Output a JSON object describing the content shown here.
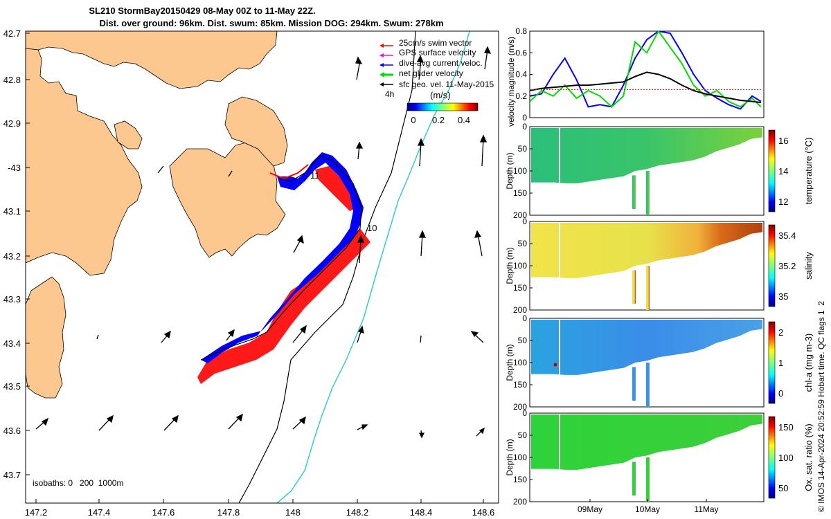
{
  "title": {
    "line1": "SL210 StormBay20150429 08-May 00Z to 11-May 22Z.",
    "line2": "Dist. over ground: 96km. Dist. swum: 85km. Mission DOG: 294km. Swum: 278km"
  },
  "map": {
    "lon_ticks": [
      "147.2",
      "147.4",
      "147.6",
      "147.8",
      "148",
      "148.2",
      "148.4",
      "148.6"
    ],
    "lat_ticks": [
      "42.7",
      "42.8",
      "42.9",
      "-43",
      "43.1",
      "43.2",
      "43.3",
      "43.4",
      "43.5",
      "43.6",
      "43.7"
    ],
    "legend": [
      {
        "label": "25cm/s swim vector",
        "color": "#ff0000"
      },
      {
        "label": "GPS surface velocity",
        "color": "#ff00ff"
      },
      {
        "label": "dive-avg current veloc.",
        "color": "#0000ff"
      },
      {
        "label": "net glider velocity",
        "color": "#00dd00"
      },
      {
        "label": "sfc geo. vel. 11-May-2015",
        "color": "#000000"
      }
    ],
    "colorbar": {
      "unit": "(m/s)",
      "ticks": [
        "0",
        "0.2",
        "0.4"
      ],
      "duration": "4h"
    },
    "isobaths": "isobaths: 0   200  1000m",
    "markers": {
      "m11": "11",
      "m10": "10"
    }
  },
  "chart_data": [
    {
      "type": "line",
      "ylabel": "velocity magnitude (m/s)",
      "ylim": [
        0,
        0.8
      ],
      "yticks": [
        "0",
        "0.2",
        "0.4",
        "0.6",
        "0.8"
      ],
      "x_days": [
        8.0,
        8.2,
        8.4,
        8.6,
        8.8,
        9.0,
        9.2,
        9.4,
        9.6,
        9.8,
        10.0,
        10.2,
        10.4,
        10.6,
        10.8,
        11.0,
        11.2,
        11.4,
        11.6,
        11.8,
        11.95
      ],
      "series": [
        {
          "color": "#0000ff",
          "values": [
            0.2,
            0.22,
            0.4,
            0.55,
            0.35,
            0.1,
            0.12,
            0.1,
            0.3,
            0.55,
            0.72,
            0.8,
            0.78,
            0.6,
            0.4,
            0.25,
            0.18,
            0.12,
            0.08,
            0.2,
            0.15
          ]
        },
        {
          "color": "#00dd00",
          "values": [
            0.15,
            0.25,
            0.2,
            0.3,
            0.18,
            0.25,
            0.2,
            0.1,
            0.2,
            0.7,
            0.6,
            0.8,
            0.65,
            0.5,
            0.3,
            0.2,
            0.25,
            0.15,
            0.1,
            0.18,
            0.1
          ]
        },
        {
          "color": "#000000",
          "values": [
            0.25,
            0.27,
            0.28,
            0.29,
            0.3,
            0.3,
            0.31,
            0.32,
            0.33,
            0.38,
            0.42,
            0.4,
            0.36,
            0.3,
            0.25,
            0.22,
            0.2,
            0.18,
            0.16,
            0.15,
            0.14
          ]
        },
        {
          "color": "#ff0000",
          "values": [
            0.26,
            0.26,
            0.26,
            0.26,
            0.26,
            0.26,
            0.26,
            0.26,
            0.26,
            0.26,
            0.26,
            0.26,
            0.26,
            0.26,
            0.26,
            0.26,
            0.26,
            0.26,
            0.26,
            0.26,
            0.26
          ]
        }
      ]
    },
    {
      "type": "heatmap",
      "ylabel": "Depth (m)",
      "yticks": [
        "0",
        "50",
        "100",
        "150",
        "200"
      ],
      "clabel": "temperature (°C)",
      "cticks": [
        "12",
        "14",
        "16"
      ],
      "bottom_pct": [
        0.63,
        0.63,
        0.63,
        0.64,
        0.64,
        0.62,
        0.6,
        0.58,
        0.56,
        0.5,
        0.48,
        0.44,
        0.42,
        0.4,
        0.38,
        0.34,
        0.28,
        0.24,
        0.2,
        0.14,
        0.12
      ]
    },
    {
      "type": "heatmap",
      "ylabel": "Depth (m)",
      "yticks": [
        "0",
        "50",
        "100",
        "150",
        "200"
      ],
      "clabel": "salinity",
      "cticks": [
        "35",
        "35.2",
        "35.4"
      ],
      "bottom_pct": [
        0.63,
        0.63,
        0.63,
        0.64,
        0.64,
        0.62,
        0.6,
        0.58,
        0.56,
        0.5,
        0.48,
        0.44,
        0.42,
        0.4,
        0.38,
        0.34,
        0.28,
        0.24,
        0.2,
        0.14,
        0.12
      ]
    },
    {
      "type": "heatmap",
      "ylabel": "Depth (m)",
      "yticks": [
        "0",
        "50",
        "100",
        "150",
        "200"
      ],
      "clabel": "chl-a (mg m-3)",
      "cticks": [
        "0",
        "1",
        "2"
      ],
      "bottom_pct": [
        0.63,
        0.63,
        0.63,
        0.64,
        0.64,
        0.62,
        0.6,
        0.58,
        0.56,
        0.5,
        0.48,
        0.44,
        0.42,
        0.4,
        0.38,
        0.34,
        0.28,
        0.24,
        0.2,
        0.14,
        0.12
      ]
    },
    {
      "type": "heatmap",
      "ylabel": "Depth (m)",
      "yticks": [
        "0",
        "50",
        "100",
        "150",
        "200"
      ],
      "clabel": "Ox. sat. ratio (%)",
      "cticks": [
        "50",
        "100",
        "150"
      ],
      "xticks": [
        "09May",
        "10May",
        "11May"
      ],
      "bottom_pct": [
        0.63,
        0.63,
        0.63,
        0.64,
        0.64,
        0.62,
        0.6,
        0.58,
        0.56,
        0.5,
        0.48,
        0.44,
        0.42,
        0.4,
        0.38,
        0.34,
        0.28,
        0.24,
        0.2,
        0.14,
        0.12
      ]
    }
  ],
  "credit": "© IMOS 14-Apr-2024 20:52:59 Hobart time. QC flags 1  2"
}
